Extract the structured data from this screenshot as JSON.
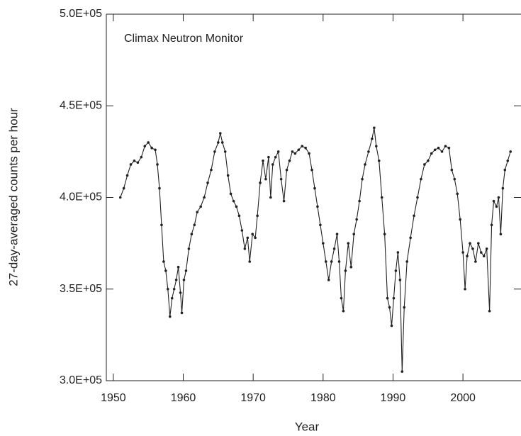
{
  "chart_data": {
    "type": "line",
    "annotation": "Climax Neutron Monitor",
    "x_label": "Year",
    "y_label": "27-day-averaged counts per hour",
    "xlim": [
      1949,
      2008.3
    ],
    "ylim": [
      300000,
      500000
    ],
    "xticks": [
      1950,
      1960,
      1970,
      1980,
      1990,
      2000
    ],
    "yticks": [
      {
        "value": 300000,
        "label": "3.0E+05"
      },
      {
        "value": 350000,
        "label": "3.5E+05"
      },
      {
        "value": 400000,
        "label": "4.0E+05"
      },
      {
        "value": 450000,
        "label": "4.5E+05"
      },
      {
        "value": 500000,
        "label": "5.0E+05"
      }
    ],
    "x": [
      1951.0,
      1951.5,
      1952.0,
      1952.5,
      1953.0,
      1953.5,
      1954.0,
      1954.5,
      1955.0,
      1955.5,
      1956.0,
      1956.3,
      1956.6,
      1956.9,
      1957.2,
      1957.5,
      1957.8,
      1958.1,
      1958.4,
      1958.7,
      1959.0,
      1959.3,
      1959.6,
      1959.8,
      1960.1,
      1960.4,
      1960.8,
      1961.2,
      1961.6,
      1962.0,
      1962.5,
      1963.0,
      1963.5,
      1964.0,
      1964.5,
      1965.0,
      1965.3,
      1965.6,
      1966.0,
      1966.4,
      1966.8,
      1967.2,
      1967.6,
      1968.0,
      1968.4,
      1968.8,
      1969.2,
      1969.5,
      1969.9,
      1970.3,
      1970.6,
      1971.0,
      1971.4,
      1971.8,
      1972.2,
      1972.5,
      1972.8,
      1973.2,
      1973.6,
      1974.0,
      1974.4,
      1974.8,
      1975.2,
      1975.6,
      1976.0,
      1976.5,
      1977.0,
      1977.5,
      1978.0,
      1978.4,
      1978.8,
      1979.2,
      1979.6,
      1980.0,
      1980.4,
      1980.8,
      1981.2,
      1981.6,
      1982.0,
      1982.3,
      1982.6,
      1982.9,
      1983.2,
      1983.6,
      1984.0,
      1984.4,
      1984.8,
      1985.2,
      1985.6,
      1986.0,
      1986.5,
      1987.0,
      1987.3,
      1987.6,
      1988.0,
      1988.4,
      1988.8,
      1989.2,
      1989.5,
      1989.8,
      1990.1,
      1990.4,
      1990.7,
      1991.0,
      1991.3,
      1991.6,
      1992.0,
      1992.5,
      1993.0,
      1993.5,
      1994.0,
      1994.5,
      1995.0,
      1995.5,
      1996.0,
      1996.5,
      1997.0,
      1997.5,
      1998.0,
      1998.4,
      1998.8,
      1999.2,
      1999.6,
      2000.0,
      2000.3,
      2000.6,
      2001.0,
      2001.4,
      2001.8,
      2002.2,
      2002.6,
      2003.0,
      2003.4,
      2003.8,
      2004.1,
      2004.4,
      2004.8,
      2005.1,
      2005.4,
      2005.7,
      2006.0,
      2006.4,
      2006.8
    ],
    "series": [
      {
        "color": "#222222",
        "values": [
          400000,
          405000,
          412000,
          418000,
          420000,
          419000,
          422000,
          428000,
          430000,
          427000,
          426000,
          418000,
          405000,
          385000,
          365000,
          360000,
          350000,
          335000,
          345000,
          350000,
          355000,
          362000,
          348000,
          337000,
          355000,
          360000,
          372000,
          380000,
          385000,
          392000,
          395000,
          400000,
          408000,
          415000,
          425000,
          430000,
          435000,
          430000,
          425000,
          412000,
          402000,
          398000,
          395000,
          390000,
          382000,
          372000,
          378000,
          365000,
          380000,
          378000,
          390000,
          408000,
          420000,
          410000,
          422000,
          400000,
          418000,
          422000,
          425000,
          410000,
          398000,
          415000,
          420000,
          425000,
          424000,
          426000,
          428000,
          427000,
          424000,
          415000,
          405000,
          395000,
          385000,
          375000,
          365000,
          355000,
          365000,
          372000,
          380000,
          365000,
          345000,
          338000,
          360000,
          375000,
          362000,
          380000,
          388000,
          398000,
          410000,
          418000,
          425000,
          432000,
          438000,
          428000,
          420000,
          400000,
          380000,
          345000,
          340000,
          330000,
          345000,
          360000,
          370000,
          355000,
          305000,
          340000,
          365000,
          378000,
          390000,
          400000,
          410000,
          418000,
          420000,
          424000,
          426000,
          427000,
          425000,
          428000,
          427000,
          415000,
          410000,
          402000,
          388000,
          370000,
          350000,
          368000,
          375000,
          372000,
          365000,
          375000,
          370000,
          368000,
          372000,
          338000,
          385000,
          398000,
          395000,
          400000,
          380000,
          405000,
          415000,
          420000,
          425000
        ]
      }
    ]
  }
}
